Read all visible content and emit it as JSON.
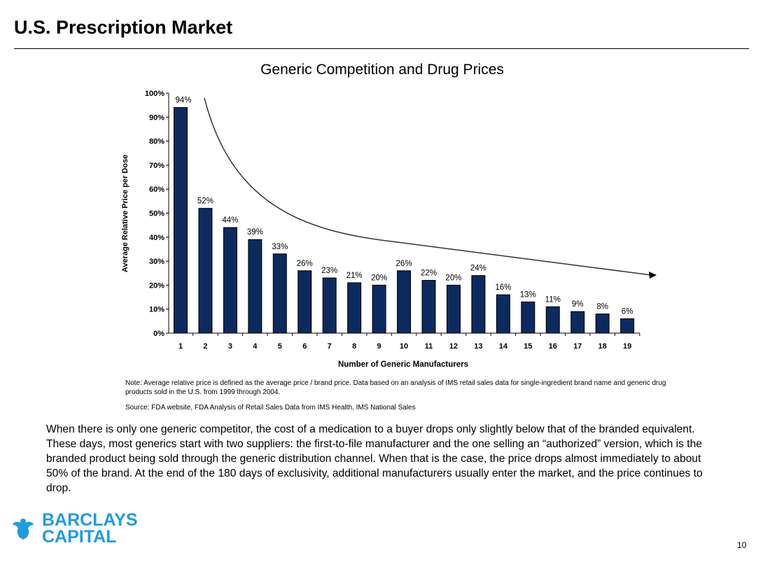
{
  "header": {
    "title": "U.S. Prescription Market"
  },
  "chart_data": {
    "type": "bar",
    "title": "Generic Competition and Drug Prices",
    "xlabel": "Number of Generic Manufacturers",
    "ylabel": "Average Relative Price per Dose",
    "categories": [
      "1",
      "2",
      "3",
      "4",
      "5",
      "6",
      "7",
      "8",
      "9",
      "10",
      "11",
      "12",
      "13",
      "14",
      "15",
      "16",
      "17",
      "18",
      "19"
    ],
    "values": [
      94,
      52,
      44,
      39,
      33,
      26,
      23,
      21,
      20,
      26,
      22,
      20,
      24,
      16,
      13,
      11,
      9,
      8,
      6
    ],
    "data_labels": [
      "94%",
      "52%",
      "44%",
      "39%",
      "33%",
      "26%",
      "23%",
      "21%",
      "20%",
      "26%",
      "22%",
      "20%",
      "24%",
      "16%",
      "13%",
      "11%",
      "9%",
      "8%",
      "6%"
    ],
    "yticks": [
      "0%",
      "10%",
      "20%",
      "30%",
      "40%",
      "50%",
      "60%",
      "70%",
      "80%",
      "90%",
      "100%"
    ],
    "ylim": [
      0,
      100
    ],
    "grid": false,
    "bar_color": "#0c2a5e",
    "annotation": "downward trend arrow curve"
  },
  "notes": {
    "note": "Note: Average relative price is defined as the average price / brand price. Data based on an analysis of IMS retail sales data for single-ingredient brand name and generic drug products sold in the U.S. from 1999 through 2004.",
    "source": "Source: FDA website, FDA Analysis of Retail Sales Data from IMS Health, IMS National Sales"
  },
  "body_text": "When there is only one generic competitor, the cost of a medication to a buyer drops only slightly below that of the branded equivalent. These days, most generics start with two suppliers: the first-to-file manufacturer and the one selling an “authorized” version, which is the branded product being sold through the generic distribution channel.  When that is the case, the price drops almost immediately to about 50% of the brand.  At the end of the 180 days of exclusivity, additional manufacturers usually enter the market, and the price continues to drop.",
  "footer": {
    "logo_line1": "BARCLAYS",
    "logo_line2": "CAPITAL",
    "logo_color": "#1e9ce0",
    "page_number": "10"
  }
}
